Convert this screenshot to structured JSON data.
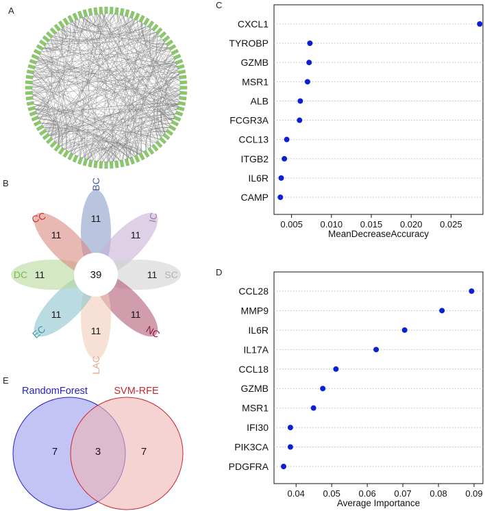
{
  "panels": {
    "a": "A",
    "b": "B",
    "c": "C",
    "d": "D",
    "e": "E"
  },
  "chart_data": [
    {
      "panel": "A",
      "type": "network",
      "layout": "circle",
      "node_color": "#8ac96a",
      "edge_color": "#7a7a7a"
    },
    {
      "panel": "B",
      "type": "flower-venn",
      "core_value": "39",
      "petals": [
        {
          "label": "BC",
          "value": "11",
          "color": "#3e57a3",
          "fill": "#8b9cc9"
        },
        {
          "label": "IC",
          "value": "11",
          "color": "#9a7ab5",
          "fill": "#c8b2d6"
        },
        {
          "label": "SC",
          "value": "11",
          "color": "#b3b3b3",
          "fill": "#d2d2d2"
        },
        {
          "label": "NC",
          "value": "11",
          "color": "#8e1b41",
          "fill": "#b35a75"
        },
        {
          "label": "LAC",
          "value": "11",
          "color": "#e4a98a",
          "fill": "#f0cdb8"
        },
        {
          "label": "EC",
          "value": "11",
          "color": "#3a94a5",
          "fill": "#8cc3cd"
        },
        {
          "label": "DC",
          "value": "11",
          "color": "#79b84f",
          "fill": "#b7d89c"
        },
        {
          "label": "CC",
          "value": "11",
          "color": "#d02b22",
          "fill": "#d98880"
        }
      ]
    },
    {
      "panel": "C",
      "type": "scatter",
      "subtype": "dotplot",
      "xlabel": "MeanDecreaseAccuracy",
      "xlim": [
        0.0028,
        0.029
      ],
      "xticks": [
        0.005,
        0.01,
        0.015,
        0.02,
        0.025
      ],
      "xtick_labels": [
        "0.005",
        "0.010",
        "0.015",
        "0.020",
        "0.025"
      ],
      "categories": [
        "CXCL1",
        "TYROBP",
        "GZMB",
        "MSR1",
        "ALB",
        "FCGR3A",
        "CCL13",
        "ITGB2",
        "IL6R",
        "CAMP"
      ],
      "values": [
        0.0286,
        0.0073,
        0.0072,
        0.007,
        0.0061,
        0.006,
        0.0044,
        0.0041,
        0.0037,
        0.0036
      ],
      "point_color": "#0a1fd6"
    },
    {
      "panel": "D",
      "type": "scatter",
      "subtype": "dotplot",
      "xlabel": "Average Importance",
      "xlim": [
        0.0338,
        0.0925
      ],
      "xticks": [
        0.04,
        0.05,
        0.06,
        0.07,
        0.08,
        0.09
      ],
      "xtick_labels": [
        "0.04",
        "0.05",
        "0.06",
        "0.07",
        "0.08",
        "0.09"
      ],
      "categories": [
        "CCL28",
        "MMP9",
        "IL6R",
        "IL17A",
        "CCL18",
        "GZMB",
        "MSR1",
        "IFI30",
        "PIK3CA",
        "PDGFRA"
      ],
      "values": [
        0.0893,
        0.081,
        0.0705,
        0.0625,
        0.0512,
        0.0475,
        0.0449,
        0.0384,
        0.0384,
        0.0365
      ],
      "point_color": "#0a1fd6"
    },
    {
      "panel": "E",
      "type": "venn",
      "sets": [
        {
          "name": "RandomForest",
          "only": "7",
          "color": "#2323c8",
          "fill": "#b9b9f3"
        },
        {
          "name": "SVM-RFE",
          "only": "7",
          "color": "#c8272d",
          "fill": "#eeb6b6"
        }
      ],
      "intersection": "3"
    }
  ]
}
